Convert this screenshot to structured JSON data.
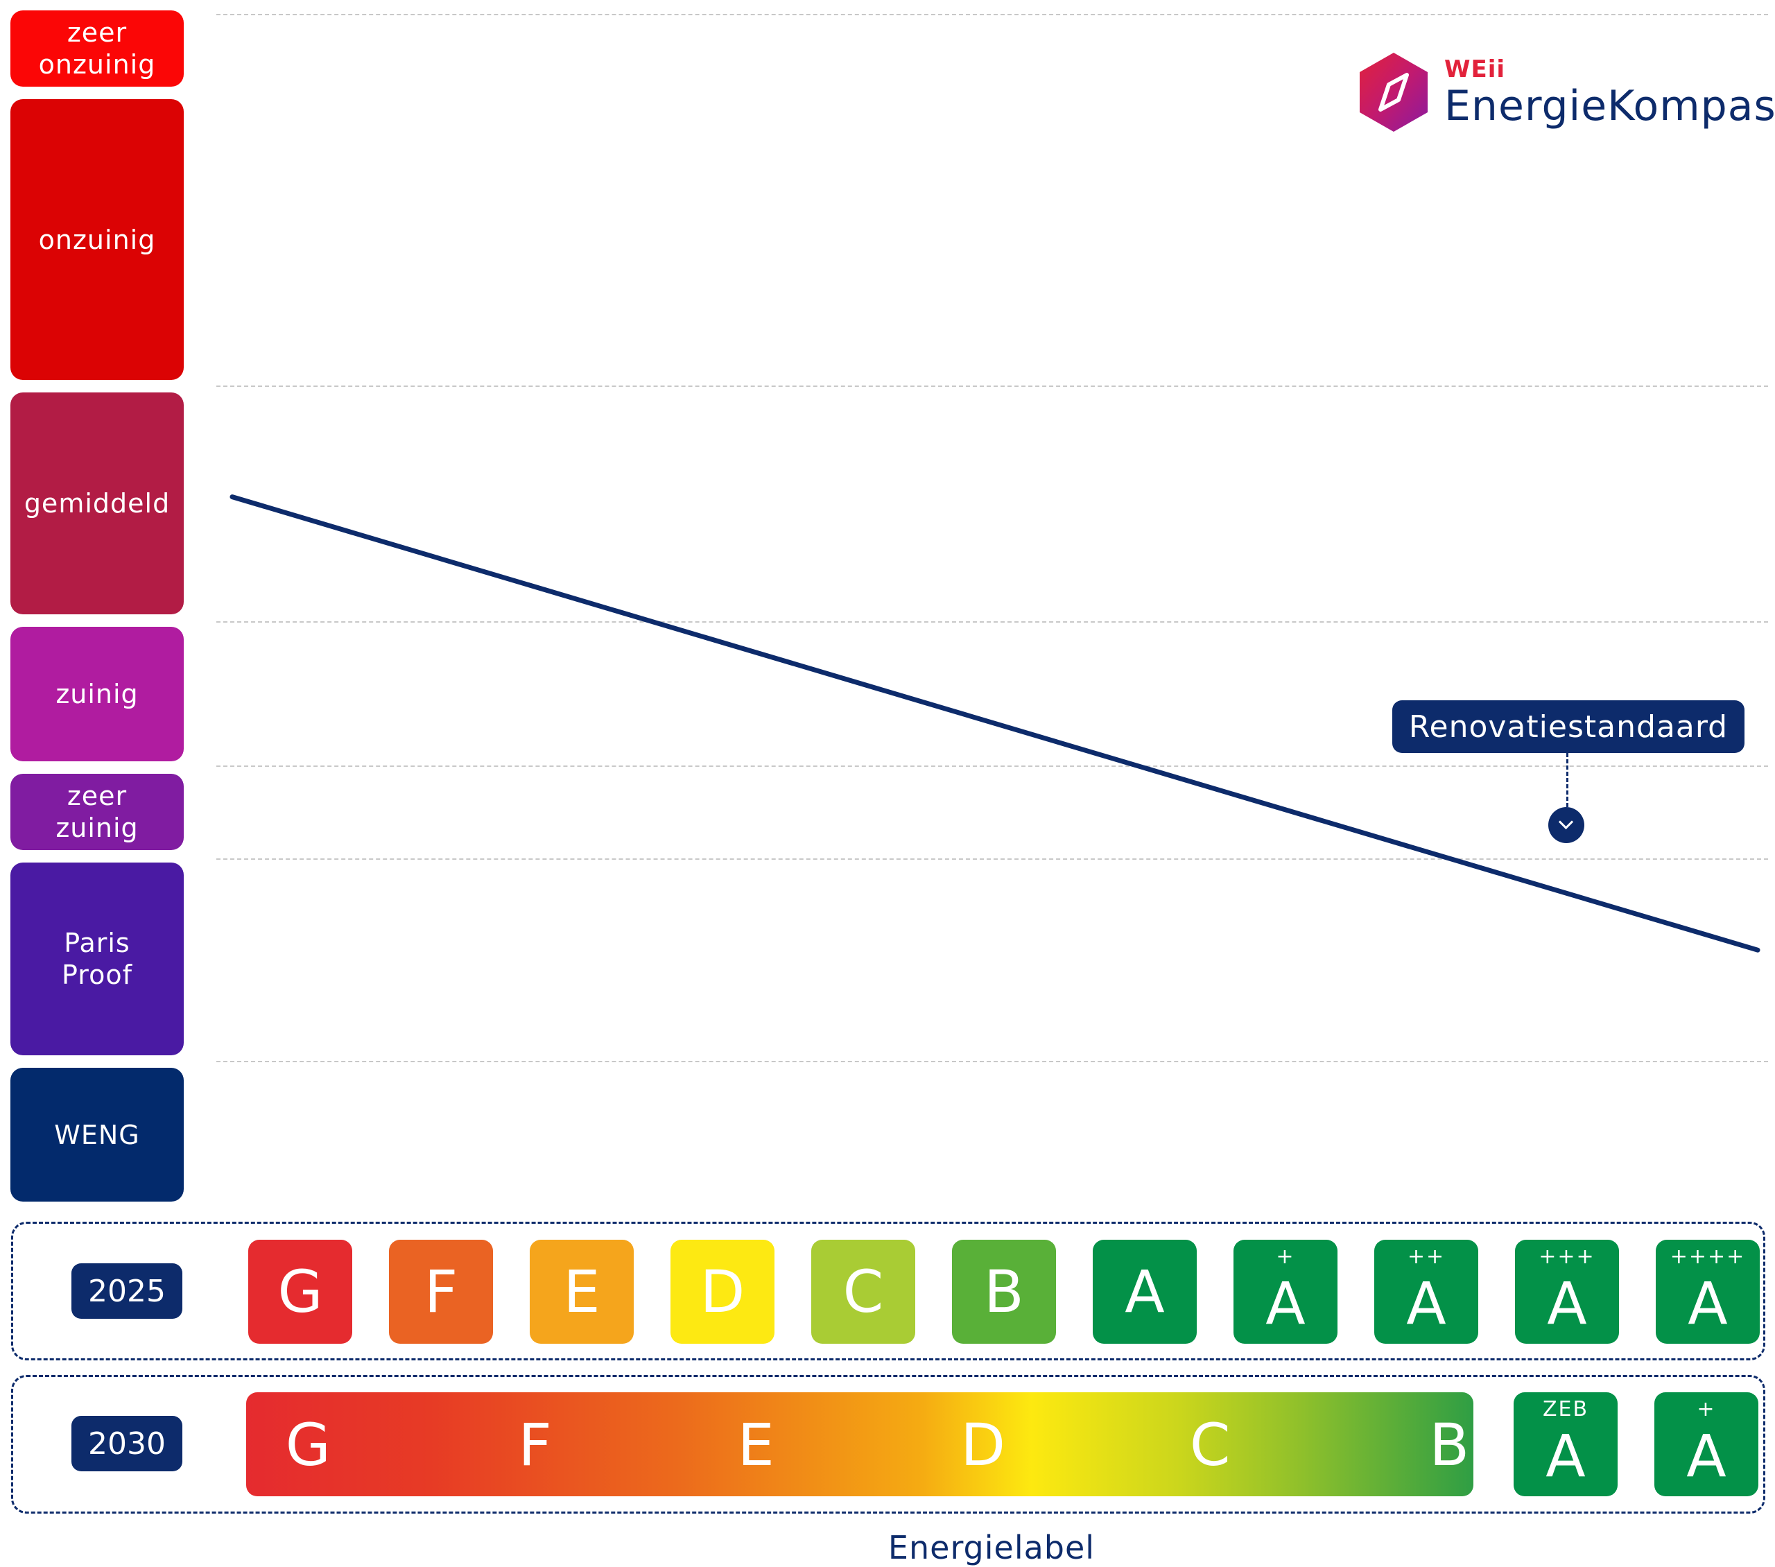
{
  "logo": {
    "brand": "WEii",
    "name": "EnergieKompas"
  },
  "chart_data": {
    "type": "line",
    "categories": [
      {
        "label": "zeer\nonzuinig",
        "color": "#fb0606"
      },
      {
        "label": "onzuinig",
        "color": "#db0304"
      },
      {
        "label": "gemiddeld",
        "color": "#b21c45"
      },
      {
        "label": "zuinig",
        "color": "#b01ca0"
      },
      {
        "label": "zeer\nzuinig",
        "color": "#801ca1"
      },
      {
        "label": "Paris\nProof",
        "color": "#4a1aa3"
      },
      {
        "label": "WENG",
        "color": "#032a6c"
      }
    ],
    "series": [
      {
        "x_start": 0,
        "x_end": 1,
        "y_start": 0.405,
        "y_end": 0.785,
        "color": "#0d2b6b"
      }
    ],
    "annotation": {
      "text": "Renovatiestandaard",
      "x": 0.877
    },
    "xlabel": "Energielabel"
  },
  "labels_2025": {
    "year": "2025",
    "items": [
      {
        "letter": "G",
        "sup": "",
        "color": "#e52b2f"
      },
      {
        "letter": "F",
        "sup": "",
        "color": "#ea6323"
      },
      {
        "letter": "E",
        "sup": "",
        "color": "#f5a51c"
      },
      {
        "letter": "D",
        "sup": "",
        "color": "#fde912"
      },
      {
        "letter": "C",
        "sup": "",
        "color": "#a9cc34"
      },
      {
        "letter": "B",
        "sup": "",
        "color": "#59b038"
      },
      {
        "letter": "A",
        "sup": "",
        "color": "#039148"
      },
      {
        "letter": "A",
        "sup": "+",
        "color": "#039148"
      },
      {
        "letter": "A",
        "sup": "++",
        "color": "#039148"
      },
      {
        "letter": "A",
        "sup": "+++",
        "color": "#039148"
      },
      {
        "letter": "A",
        "sup": "++++",
        "color": "#039148"
      }
    ]
  },
  "labels_2030": {
    "year": "2030",
    "bar_letters": [
      "G",
      "F",
      "E",
      "D",
      "C",
      "B"
    ],
    "items": [
      {
        "letter": "A",
        "sup": "ZEB",
        "color": "#039148"
      },
      {
        "letter": "A",
        "sup": "+",
        "color": "#039148"
      }
    ]
  }
}
